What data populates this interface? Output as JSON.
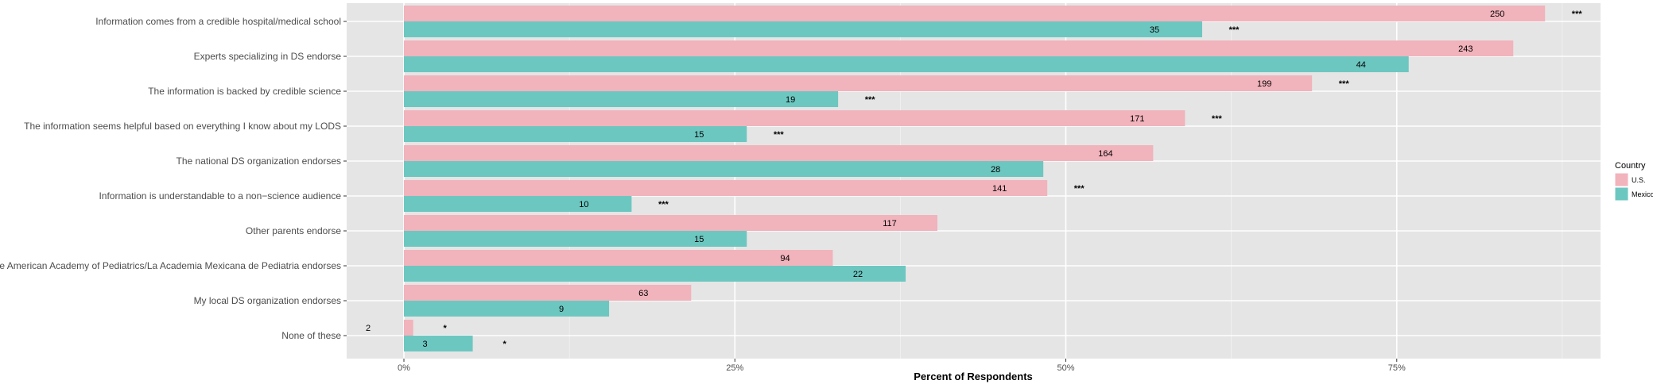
{
  "chart_data": {
    "type": "bar",
    "orientation": "horizontal",
    "xlabel": "Percent of Respondents",
    "ylabel": "",
    "xlim": [
      0,
      0.9
    ],
    "x_ticks": [
      {
        "value": 0,
        "label": "0%"
      },
      {
        "value": 0.25,
        "label": "25%"
      },
      {
        "value": 0.5,
        "label": "50%"
      },
      {
        "value": 0.75,
        "label": "75%"
      }
    ],
    "grid": true,
    "legend": {
      "title": "Country",
      "position": "right"
    },
    "categories": [
      "Information comes from a credible hospital/medical school",
      "Experts specializing in DS endorse",
      "The information is backed by credible science",
      "The information seems helpful based on everything I know about my LODS",
      "The national DS organization endorses",
      "Information is understandable to a non−science audience",
      "Other parents endorse",
      "The American Academy of Pediatrics/La Academia Mexicana de Pediatria endorses",
      "My local DS organization endorses",
      "None of these"
    ],
    "series": [
      {
        "name": "U.S.",
        "color": "#F1B3BC",
        "values": [
          0.862,
          0.838,
          0.686,
          0.59,
          0.566,
          0.486,
          0.403,
          0.324,
          0.217,
          0.007
        ],
        "counts": [
          "250",
          "243",
          "199",
          "171",
          "164",
          "141",
          "117",
          "94",
          "63",
          "2"
        ],
        "significance": [
          "***",
          "",
          "***",
          "***",
          "",
          "***",
          "",
          "",
          "",
          "*"
        ]
      },
      {
        "name": "Mexico",
        "color": "#6DC7C1",
        "values": [
          0.603,
          0.759,
          0.328,
          0.259,
          0.483,
          0.172,
          0.259,
          0.379,
          0.155,
          0.052
        ],
        "counts": [
          "35",
          "44",
          "19",
          "15",
          "28",
          "10",
          "15",
          "22",
          "9",
          "3"
        ],
        "significance": [
          "***",
          "",
          "***",
          "***",
          "",
          "***",
          "",
          "",
          "",
          "*"
        ]
      }
    ]
  }
}
